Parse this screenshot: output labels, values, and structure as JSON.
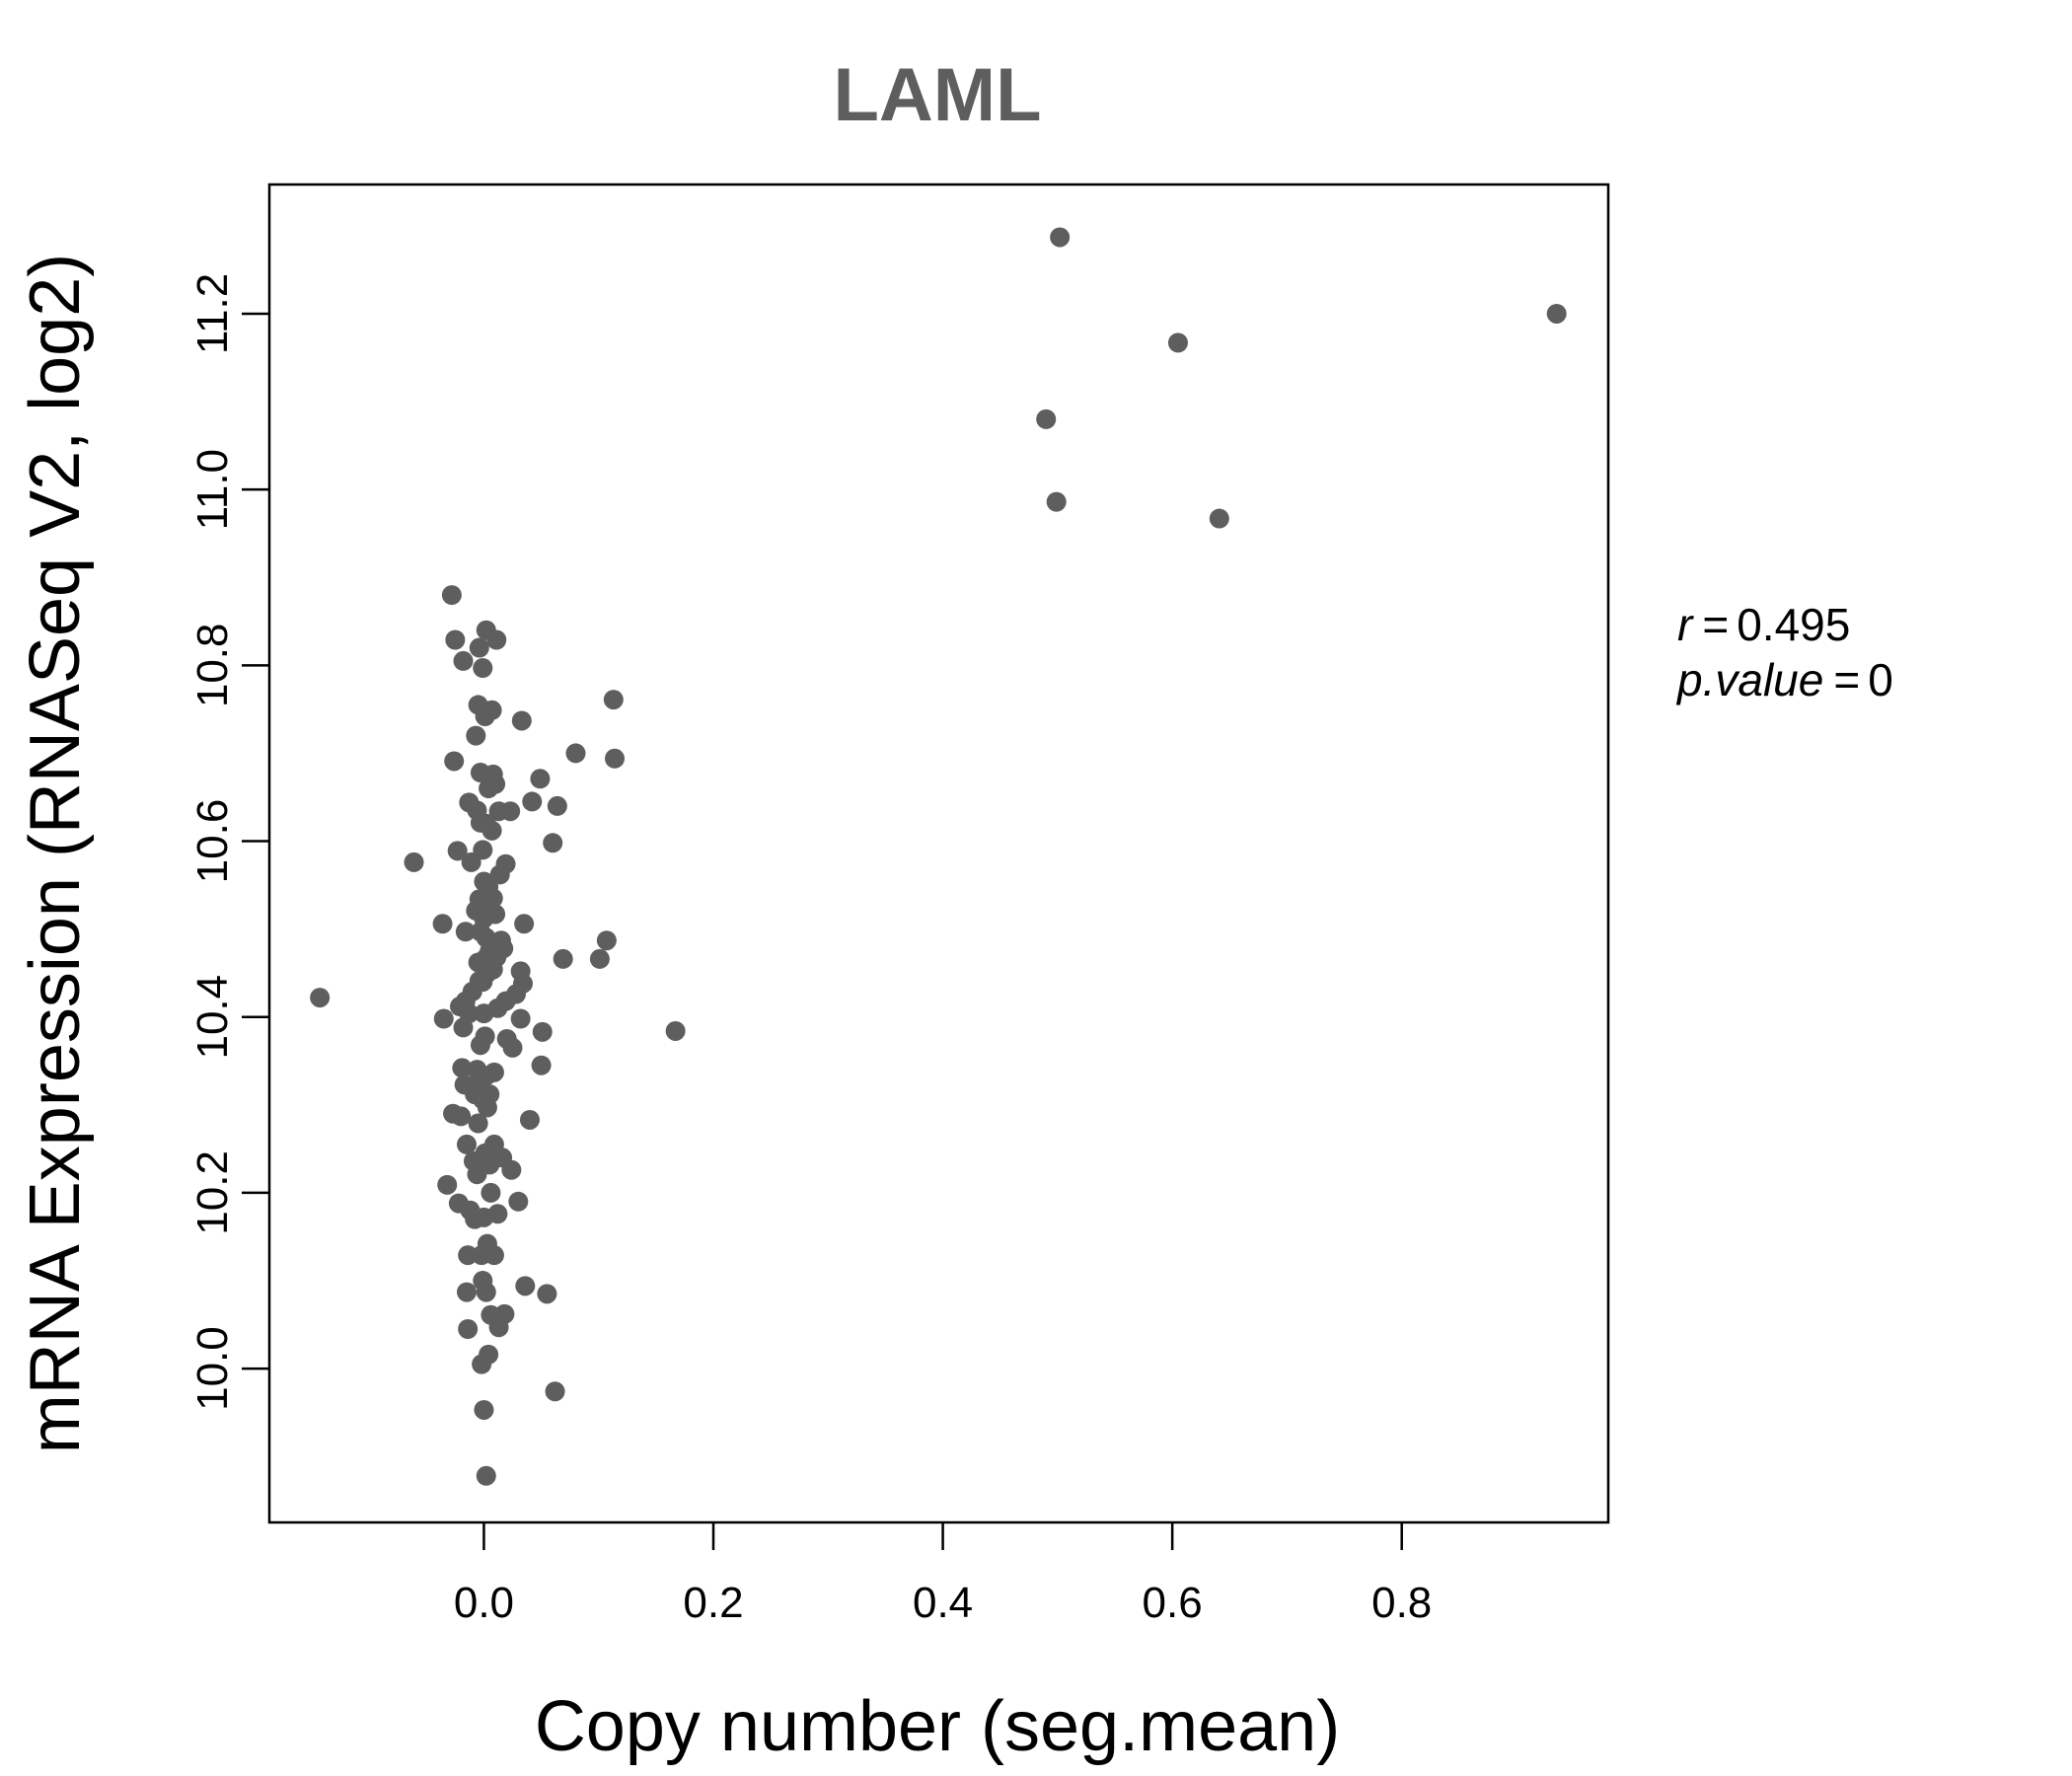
{
  "chart_data": {
    "type": "scatter",
    "title": "LAML",
    "xlabel": "Copy number (seg.mean)",
    "ylabel": "mRNA Expression (RNASeq V2, log2)",
    "xlim": [
      -0.187,
      0.98
    ],
    "ylim": [
      9.825,
      11.347
    ],
    "xticks": [
      0.0,
      0.2,
      0.4,
      0.6,
      0.8
    ],
    "xtick_labels": [
      "0.0",
      "0.2",
      "0.4",
      "0.6",
      "0.8"
    ],
    "yticks": [
      10.0,
      10.2,
      10.4,
      10.6,
      10.8,
      11.0,
      11.2
    ],
    "ytick_labels": [
      "10.0",
      "10.2",
      "10.4",
      "10.6",
      "10.8",
      "11.0",
      "11.2"
    ],
    "point_color": "#5e5e5e",
    "stats": {
      "r_label": "r",
      "r_value": "0.495",
      "p_label": "p.value",
      "p_value": "0"
    },
    "points": [
      [
        -0.143,
        10.422
      ],
      [
        -0.061,
        10.576
      ],
      [
        -0.036,
        10.506
      ],
      [
        -0.035,
        10.398
      ],
      [
        -0.032,
        10.209
      ],
      [
        -0.028,
        10.88
      ],
      [
        -0.027,
        10.29
      ],
      [
        -0.026,
        10.691
      ],
      [
        -0.025,
        10.829
      ],
      [
        -0.023,
        10.589
      ],
      [
        -0.022,
        10.188
      ],
      [
        -0.021,
        10.412
      ],
      [
        -0.02,
        10.287
      ],
      [
        -0.019,
        10.342
      ],
      [
        -0.018,
        10.805
      ],
      [
        -0.018,
        10.388
      ],
      [
        -0.017,
        10.323
      ],
      [
        -0.016,
        10.497
      ],
      [
        -0.016,
        10.418
      ],
      [
        -0.015,
        10.255
      ],
      [
        -0.015,
        10.087
      ],
      [
        -0.014,
        10.129
      ],
      [
        -0.014,
        10.045
      ],
      [
        -0.013,
        10.644
      ],
      [
        -0.013,
        10.404
      ],
      [
        -0.012,
        10.18
      ],
      [
        -0.011,
        10.576
      ],
      [
        -0.01,
        10.429
      ],
      [
        -0.009,
        10.236
      ],
      [
        -0.008,
        10.312
      ],
      [
        -0.008,
        10.17
      ],
      [
        -0.007,
        10.72
      ],
      [
        -0.007,
        10.521
      ],
      [
        -0.006,
        10.635
      ],
      [
        -0.006,
        10.34
      ],
      [
        -0.006,
        10.221
      ],
      [
        -0.005,
        10.755
      ],
      [
        -0.005,
        10.462
      ],
      [
        -0.005,
        10.279
      ],
      [
        -0.004,
        10.82
      ],
      [
        -0.004,
        10.534
      ],
      [
        -0.004,
        10.441
      ],
      [
        -0.003,
        10.678
      ],
      [
        -0.003,
        10.621
      ],
      [
        -0.003,
        10.497
      ],
      [
        -0.003,
        10.368
      ],
      [
        -0.002,
        10.327
      ],
      [
        -0.002,
        10.129
      ],
      [
        -0.002,
        10.005
      ],
      [
        -0.001,
        10.797
      ],
      [
        -0.001,
        10.59
      ],
      [
        -0.001,
        10.44
      ],
      [
        -0.001,
        10.306
      ],
      [
        -0.001,
        10.1
      ],
      [
        0.0,
        10.554
      ],
      [
        0.0,
        10.512
      ],
      [
        0.0,
        10.404
      ],
      [
        0.0,
        10.172
      ],
      [
        0.0,
        9.953
      ],
      [
        0.001,
        10.742
      ],
      [
        0.001,
        10.466
      ],
      [
        0.001,
        10.378
      ],
      [
        0.001,
        10.245
      ],
      [
        0.002,
        10.84
      ],
      [
        0.002,
        10.62
      ],
      [
        0.002,
        10.49
      ],
      [
        0.002,
        10.333
      ],
      [
        0.002,
        10.087
      ],
      [
        0.002,
        9.878
      ],
      [
        0.003,
        10.527
      ],
      [
        0.003,
        10.45
      ],
      [
        0.003,
        10.297
      ],
      [
        0.003,
        10.142
      ],
      [
        0.004,
        10.016
      ],
      [
        0.004,
        10.66
      ],
      [
        0.004,
        10.548
      ],
      [
        0.005,
        10.475
      ],
      [
        0.005,
        10.312
      ],
      [
        0.005,
        10.232
      ],
      [
        0.006,
        10.2
      ],
      [
        0.006,
        10.061
      ],
      [
        0.007,
        10.749
      ],
      [
        0.007,
        10.612
      ],
      [
        0.008,
        10.676
      ],
      [
        0.008,
        10.535
      ],
      [
        0.008,
        10.454
      ],
      [
        0.009,
        10.337
      ],
      [
        0.009,
        10.255
      ],
      [
        0.009,
        10.129
      ],
      [
        0.01,
        10.665
      ],
      [
        0.01,
        10.517
      ],
      [
        0.011,
        10.829
      ],
      [
        0.011,
        10.468
      ],
      [
        0.012,
        10.41
      ],
      [
        0.012,
        10.176
      ],
      [
        0.013,
        10.634
      ],
      [
        0.013,
        10.047
      ],
      [
        0.014,
        10.562
      ],
      [
        0.015,
        10.487
      ],
      [
        0.016,
        10.24
      ],
      [
        0.017,
        10.478
      ],
      [
        0.018,
        10.062
      ],
      [
        0.019,
        10.574
      ],
      [
        0.019,
        10.418
      ],
      [
        0.02,
        10.375
      ],
      [
        0.023,
        10.634
      ],
      [
        0.024,
        10.226
      ],
      [
        0.025,
        10.365
      ],
      [
        0.028,
        10.426
      ],
      [
        0.03,
        10.19
      ],
      [
        0.032,
        10.452
      ],
      [
        0.032,
        10.398
      ],
      [
        0.033,
        10.737
      ],
      [
        0.034,
        10.438
      ],
      [
        0.035,
        10.506
      ],
      [
        0.036,
        10.094
      ],
      [
        0.04,
        10.283
      ],
      [
        0.042,
        10.645
      ],
      [
        0.049,
        10.671
      ],
      [
        0.05,
        10.345
      ],
      [
        0.051,
        10.383
      ],
      [
        0.055,
        10.085
      ],
      [
        0.06,
        10.598
      ],
      [
        0.062,
        9.974
      ],
      [
        0.064,
        10.64
      ],
      [
        0.069,
        10.466
      ],
      [
        0.08,
        10.7
      ],
      [
        0.101,
        10.466
      ],
      [
        0.107,
        10.487
      ],
      [
        0.113,
        10.761
      ],
      [
        0.114,
        10.694
      ],
      [
        0.167,
        10.384
      ],
      [
        0.49,
        11.08
      ],
      [
        0.499,
        10.986
      ],
      [
        0.502,
        11.287
      ],
      [
        0.605,
        11.167
      ],
      [
        0.641,
        10.967
      ],
      [
        0.935,
        11.2
      ]
    ]
  }
}
